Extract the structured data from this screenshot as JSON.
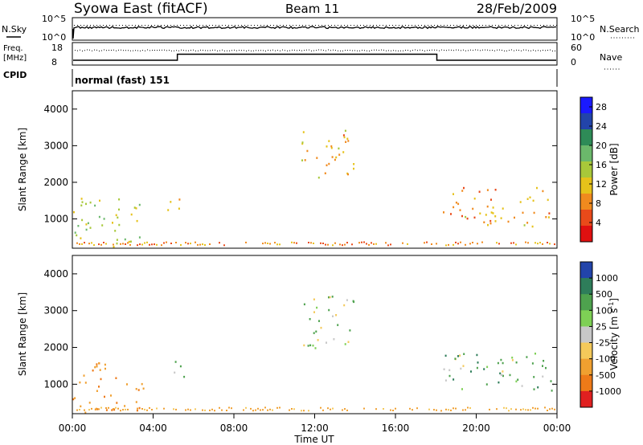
{
  "header": {
    "station": "Syowa East (fitACF)",
    "beam": "Beam 11",
    "date": "28/Feb/2009"
  },
  "top_panels": {
    "nsky_label": "N.Sky",
    "nsearch_label": "N.Search",
    "nsky_ticks": [
      "10^5",
      "10^0"
    ],
    "nsearch_ticks": [
      "10^5",
      "10^0"
    ],
    "freq_label_1": "Freq.",
    "freq_label_2": "[MHz]",
    "freq_ticks": [
      "18",
      "8"
    ],
    "nave_label": "Nave",
    "nave_ticks": [
      "60",
      "0"
    ],
    "cpid_label": "CPID",
    "cpid_value": "normal (fast) 151"
  },
  "colors": {
    "power_scale": [
      "#1a1aff",
      "#2244aa",
      "#2e8b57",
      "#6bb86b",
      "#a8c83a",
      "#e6c21a",
      "#f08a1e",
      "#e94a1a",
      "#e01010"
    ],
    "velocity_scale": [
      "#2244aa",
      "#2e7d5a",
      "#4ea24e",
      "#7ed055",
      "#c8c8c8",
      "#f4c95a",
      "#f0a030",
      "#ee7a18",
      "#e02020"
    ]
  },
  "chart_data": [
    {
      "type": "heatmap",
      "title": "",
      "xlabel": "Time UT",
      "ylabel": "Slant Range [km]",
      "x_ticks": [
        "00:00",
        "04:00",
        "08:00",
        "12:00",
        "16:00",
        "20:00",
        "00:00"
      ],
      "y_ticks": [
        "1000",
        "2000",
        "3000",
        "4000"
      ],
      "ylim": [
        200,
        4500
      ],
      "colorbar_label": "Power [dB]",
      "colorbar_ticks": [
        "4",
        "8",
        "12",
        "16",
        "20",
        "24",
        "28"
      ],
      "colorbar_range": [
        0,
        30
      ],
      "regions": [
        {
          "t0": 0.0,
          "t1": 3.5,
          "r0": 250,
          "r1": 1600,
          "value": 14
        },
        {
          "t0": 4.5,
          "t1": 5.5,
          "r0": 1200,
          "r1": 1700,
          "value": 12
        },
        {
          "t0": 11.3,
          "t1": 13.9,
          "r0": 2000,
          "r1": 3450,
          "value": 10
        },
        {
          "t0": 18.3,
          "t1": 23.8,
          "r0": 800,
          "r1": 1900,
          "value": 9
        }
      ]
    },
    {
      "type": "heatmap",
      "title": "",
      "xlabel": "Time UT",
      "ylabel": "Slant Range [km]",
      "x_ticks": [
        "00:00",
        "04:00",
        "08:00",
        "12:00",
        "16:00",
        "20:00",
        "00:00"
      ],
      "y_ticks": [
        "1000",
        "2000",
        "3000",
        "4000"
      ],
      "ylim": [
        200,
        4500
      ],
      "colorbar_label": "Velocity [m s^-1]",
      "colorbar_ticks": [
        "1000",
        "500",
        "100",
        "25",
        "-25",
        "-100",
        "-500",
        "-1000"
      ],
      "colorbar_range": [
        -1000,
        1000
      ],
      "regions": [
        {
          "t0": 0.0,
          "t1": 3.5,
          "r0": 250,
          "r1": 1600,
          "value": -300
        },
        {
          "t0": 4.5,
          "t1": 5.5,
          "r0": 1200,
          "r1": 1700,
          "value": 0
        },
        {
          "t0": 11.3,
          "t1": 13.9,
          "r0": 2000,
          "r1": 3450,
          "value": 0
        },
        {
          "t0": 18.3,
          "t1": 23.8,
          "r0": 800,
          "r1": 1900,
          "value": 40
        }
      ]
    }
  ]
}
